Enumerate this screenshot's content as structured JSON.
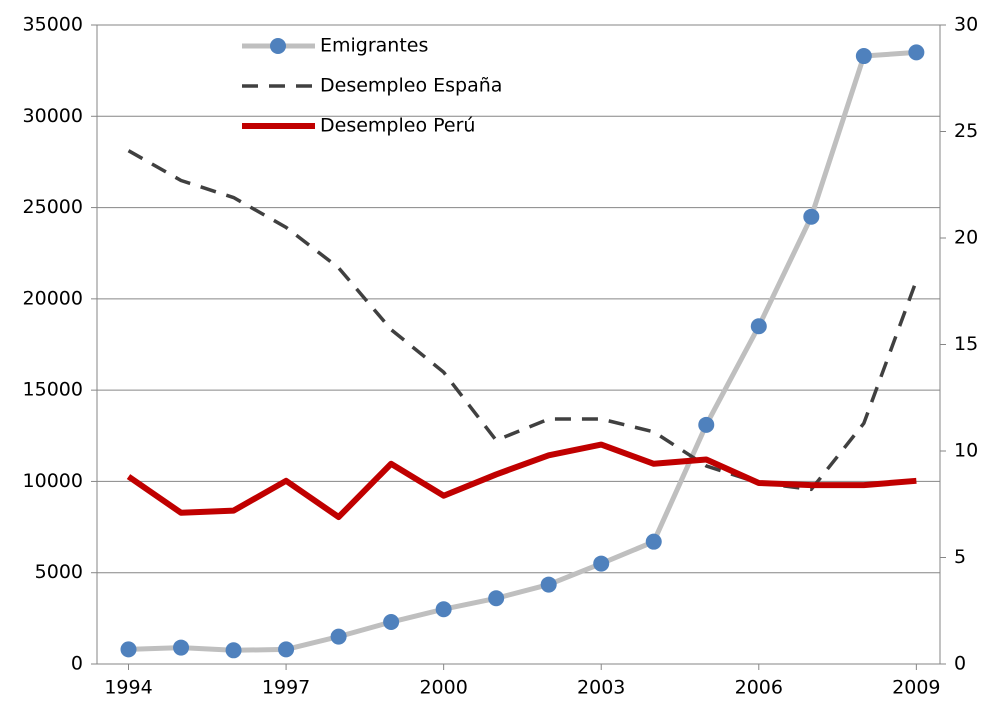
{
  "chart_data": {
    "type": "line",
    "x": [
      1994,
      1995,
      1996,
      1997,
      1998,
      1999,
      2000,
      2001,
      2002,
      2003,
      2004,
      2005,
      2006,
      2007,
      2008,
      2009
    ],
    "xlim": [
      1993.4,
      2009.45
    ],
    "xticks": [
      1994,
      1997,
      2000,
      2003,
      2006,
      2009
    ],
    "ylim": [
      0,
      35000
    ],
    "yticks": [
      0,
      5000,
      10000,
      15000,
      20000,
      25000,
      30000,
      35000
    ],
    "y2lim": [
      0,
      30
    ],
    "y2ticks": [
      0,
      5,
      10,
      15,
      20,
      25,
      30
    ],
    "grid": true,
    "legend": "top-left",
    "series": [
      {
        "name": "Emigrantes",
        "color": "#bfbfbf",
        "marker_color": "#4f81bd",
        "marker": "circle",
        "style": "solid",
        "values": [
          800,
          900,
          750,
          800,
          1500,
          2300,
          3000,
          3600,
          4350,
          5500,
          6700,
          13100,
          18500,
          24500,
          33300,
          33500
        ]
      },
      {
        "name": "Desempleo España",
        "color": "#404040",
        "style": "dashed",
        "axis": "y2",
        "values": [
          24.1,
          22.7,
          21.9,
          20.5,
          18.6,
          15.7,
          13.7,
          10.5,
          11.5,
          11.5,
          10.9,
          9.3,
          8.5,
          8.2,
          11.3,
          18.0
        ]
      },
      {
        "name": "Desempleo Perú",
        "color": "#c00000",
        "style": "thick",
        "axis": "y2",
        "values": [
          8.8,
          7.1,
          7.2,
          8.6,
          6.9,
          9.4,
          7.9,
          8.9,
          9.8,
          10.3,
          9.4,
          9.6,
          8.5,
          8.4,
          8.4,
          8.6
        ]
      }
    ]
  }
}
